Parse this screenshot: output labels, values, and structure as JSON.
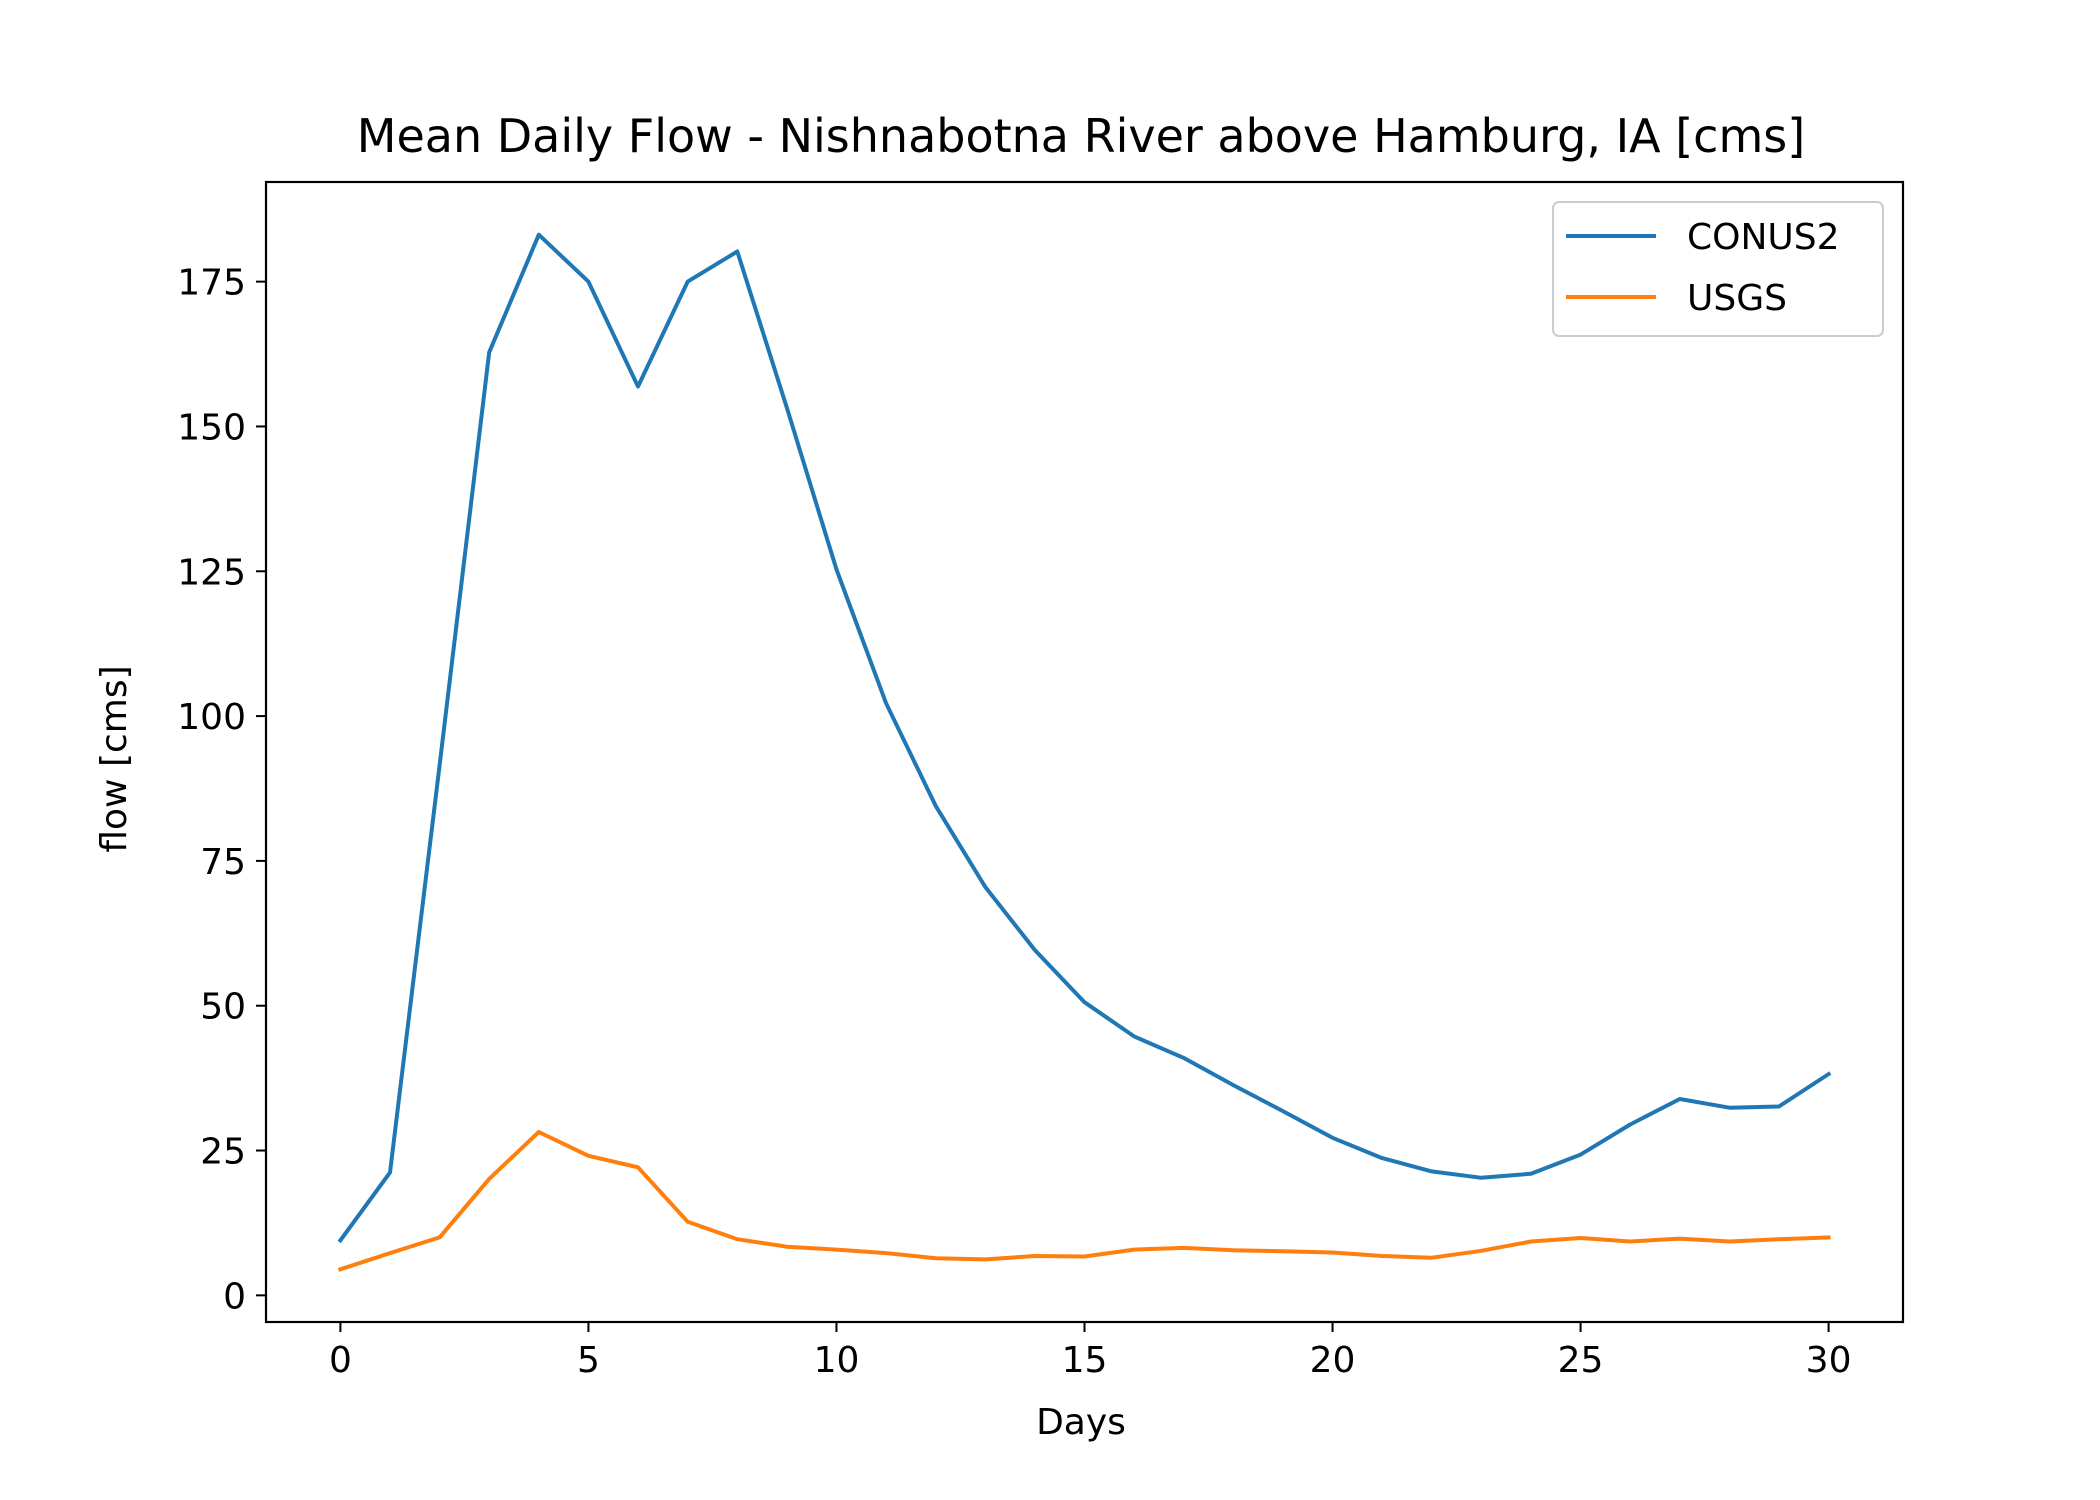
{
  "chart_data": {
    "type": "line",
    "title": "Mean Daily Flow - Nishnabotna River above Hamburg, IA [cms]",
    "xlabel": "Days",
    "ylabel": "flow [cms]",
    "xlim": [
      -1.5,
      31.5
    ],
    "ylim": [
      -4.6,
      192.2
    ],
    "xticks": [
      0,
      5,
      10,
      15,
      20,
      25,
      30
    ],
    "yticks": [
      0,
      25,
      50,
      75,
      100,
      125,
      150,
      175
    ],
    "grid": false,
    "legend_position": "top-right",
    "x": [
      0,
      1,
      2,
      3,
      4,
      5,
      6,
      7,
      8,
      9,
      10,
      11,
      12,
      13,
      14,
      15,
      16,
      17,
      18,
      19,
      20,
      21,
      22,
      23,
      24,
      25,
      26,
      27,
      28,
      29,
      30
    ],
    "series": [
      {
        "name": "CONUS2",
        "color": "#1f77b4",
        "values": [
          9.5,
          21.2,
          91.5,
          162.8,
          183.1,
          175.0,
          156.9,
          175.0,
          180.2,
          153.2,
          125.3,
          102.2,
          84.5,
          70.5,
          59.6,
          50.6,
          44.7,
          41.0,
          36.3,
          31.8,
          27.2,
          23.7,
          21.4,
          20.3,
          21.0,
          24.3,
          29.5,
          33.9,
          32.4,
          32.6,
          38.2
        ]
      },
      {
        "name": "USGS",
        "color": "#ff7f0e",
        "values": [
          4.5,
          7.3,
          10.0,
          20.1,
          28.2,
          24.1,
          22.1,
          12.7,
          9.7,
          8.4,
          7.9,
          7.3,
          6.4,
          6.2,
          6.8,
          6.7,
          7.9,
          8.2,
          7.8,
          7.6,
          7.4,
          6.8,
          6.5,
          7.7,
          9.3,
          9.9,
          9.3,
          9.8,
          9.3,
          9.7,
          10.0
        ]
      }
    ]
  }
}
